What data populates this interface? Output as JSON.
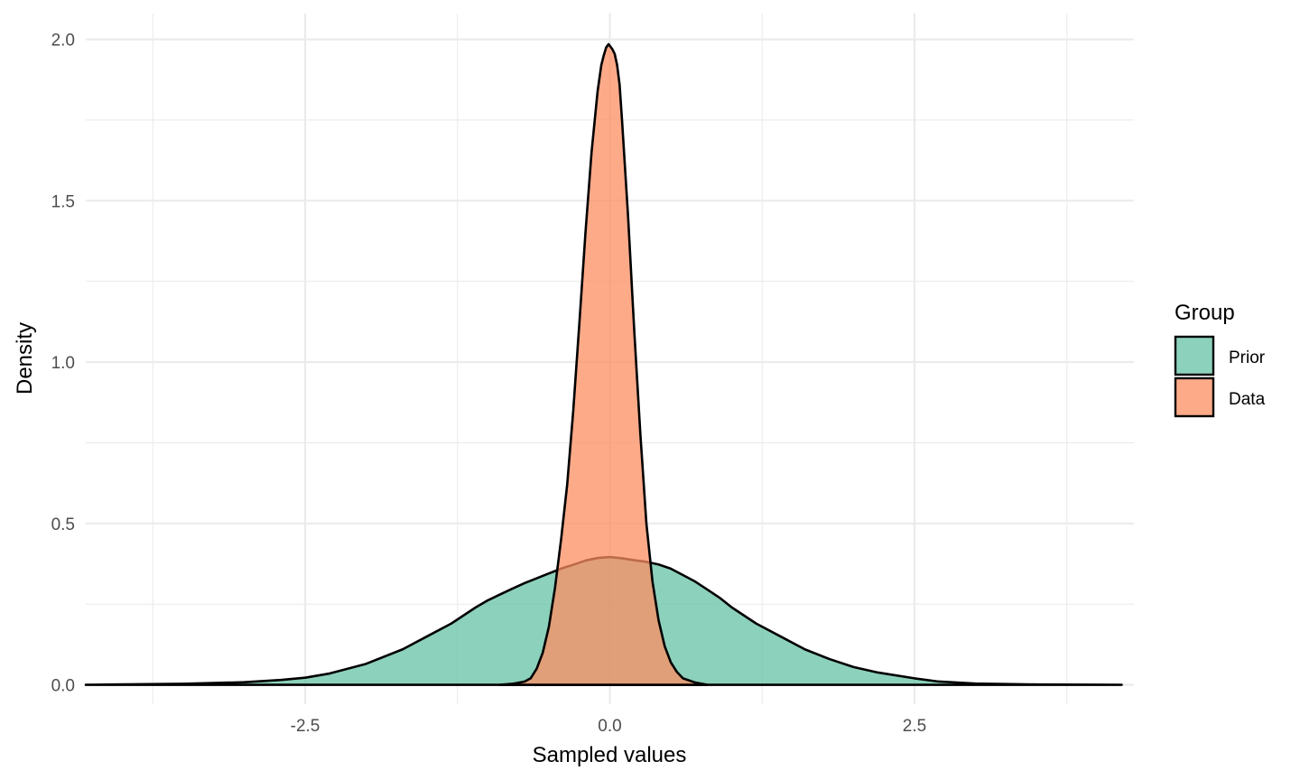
{
  "chart_data": {
    "type": "area",
    "subtype": "density",
    "title": "",
    "xlabel": "Sampled values",
    "ylabel": "Density",
    "xlim": [
      -4.3,
      4.3
    ],
    "ylim": [
      -0.06,
      2.08
    ],
    "x_ticks": [
      -2.5,
      0.0,
      2.5
    ],
    "x_tick_labels": [
      "-2.5",
      "0.0",
      "2.5"
    ],
    "y_ticks": [
      0.0,
      0.5,
      1.0,
      1.5,
      2.0
    ],
    "y_tick_labels": [
      "0.0",
      "0.5",
      "1.0",
      "1.5",
      "2.0"
    ],
    "grid": true,
    "legend": {
      "title": "Group",
      "position": "right",
      "entries": [
        {
          "label": "Prior",
          "color": "#66c2a5"
        },
        {
          "label": "Data",
          "color": "#fc8d62"
        }
      ]
    },
    "fill_opacity": 0.75,
    "series": [
      {
        "name": "Prior",
        "color": "#66c2a5",
        "x": [
          -4.3,
          -3.5,
          -3.0,
          -2.7,
          -2.5,
          -2.3,
          -2.0,
          -1.7,
          -1.5,
          -1.3,
          -1.1,
          -1.0,
          -0.9,
          -0.8,
          -0.7,
          -0.6,
          -0.5,
          -0.4,
          -0.3,
          -0.2,
          -0.1,
          0.0,
          0.1,
          0.2,
          0.3,
          0.4,
          0.5,
          0.6,
          0.7,
          0.8,
          0.9,
          1.0,
          1.2,
          1.4,
          1.6,
          1.8,
          2.0,
          2.2,
          2.5,
          2.7,
          3.0,
          3.5,
          4.2
        ],
        "values": [
          0.0,
          0.003,
          0.008,
          0.015,
          0.022,
          0.035,
          0.065,
          0.11,
          0.15,
          0.19,
          0.24,
          0.262,
          0.28,
          0.298,
          0.315,
          0.33,
          0.345,
          0.36,
          0.372,
          0.385,
          0.393,
          0.396,
          0.392,
          0.386,
          0.381,
          0.373,
          0.36,
          0.34,
          0.32,
          0.295,
          0.27,
          0.24,
          0.19,
          0.15,
          0.11,
          0.08,
          0.055,
          0.038,
          0.02,
          0.01,
          0.004,
          0.001,
          0.0
        ]
      },
      {
        "name": "Data",
        "color": "#fc8d62",
        "x": [
          -0.9,
          -0.8,
          -0.7,
          -0.65,
          -0.6,
          -0.55,
          -0.5,
          -0.45,
          -0.4,
          -0.35,
          -0.3,
          -0.25,
          -0.2,
          -0.15,
          -0.1,
          -0.07,
          -0.05,
          -0.03,
          -0.01,
          0.0,
          0.02,
          0.04,
          0.06,
          0.08,
          0.1,
          0.15,
          0.2,
          0.25,
          0.3,
          0.35,
          0.4,
          0.45,
          0.5,
          0.55,
          0.6,
          0.7,
          0.8
        ],
        "values": [
          0.0,
          0.003,
          0.01,
          0.02,
          0.05,
          0.1,
          0.18,
          0.3,
          0.45,
          0.62,
          0.85,
          1.12,
          1.4,
          1.65,
          1.84,
          1.92,
          1.95,
          1.975,
          1.985,
          1.98,
          1.97,
          1.955,
          1.92,
          1.86,
          1.75,
          1.45,
          1.1,
          0.78,
          0.5,
          0.32,
          0.2,
          0.12,
          0.07,
          0.04,
          0.02,
          0.007,
          0.0
        ]
      }
    ]
  }
}
